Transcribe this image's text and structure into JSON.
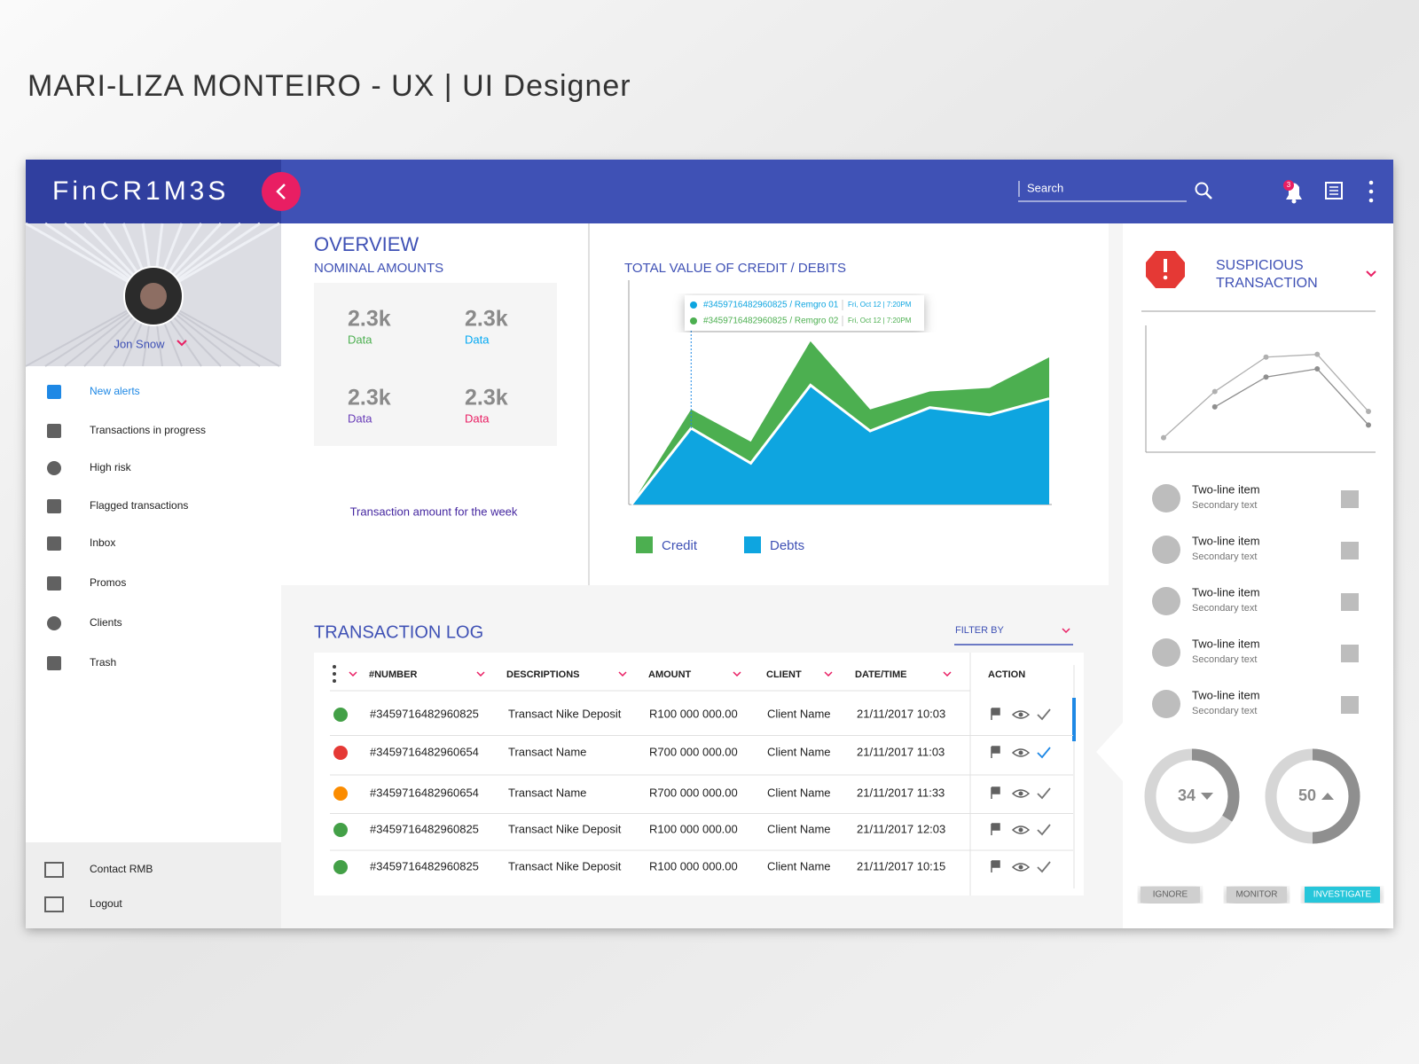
{
  "header": {
    "title": "MARI-LIZA MONTEIRO - UX | UI Designer"
  },
  "app": {
    "brand": "FinCR1M3S",
    "search_placeholder": "Search",
    "notification_count": "3"
  },
  "profile": {
    "name": "Jon Snow"
  },
  "nav": [
    "New alerts",
    "Transactions in progress",
    "High risk",
    "Flagged   transactions",
    "Inbox",
    "Promos",
    "Clients",
    "Trash"
  ],
  "nav_footer": [
    "Contact RMB",
    "Logout"
  ],
  "overview": {
    "title": "OVERVIEW",
    "subtitle": "NOMINAL AMOUNTS",
    "tiles": [
      {
        "value": "2.3k",
        "label": "Data",
        "color": "#4caf50"
      },
      {
        "value": "2.3k",
        "label": "Data",
        "color": "#03a9f4"
      },
      {
        "value": "2.3k",
        "label": "Data",
        "color": "#673ab7"
      },
      {
        "value": "2.3k",
        "label": "Data",
        "color": "#e91e63"
      }
    ],
    "caption": "Transaction amount for the week"
  },
  "chart_data": [
    {
      "type": "area",
      "stacked": true,
      "title": "TOTAL VALUE OF CREDIT / DEBITS",
      "series": [
        {
          "name": "Credit",
          "color": "#4caf50",
          "values": [
            0,
            21,
            24,
            49,
            24,
            18,
            30,
            46
          ]
        },
        {
          "name": "Debts",
          "color": "#0ea5e0",
          "values": [
            0,
            85,
            46,
            133,
            82,
            108,
            100,
            118
          ]
        }
      ],
      "ylim": [
        0,
        250
      ]
    },
    {
      "type": "line",
      "series": [
        {
          "color": "#b0b0b0",
          "values": [
            16,
            67,
            105,
            108,
            45
          ]
        },
        {
          "color": "#8f8f8f",
          "values": [
            null,
            50,
            83,
            92,
            30
          ]
        }
      ],
      "ylim": [
        0,
        140
      ]
    }
  ],
  "tooltip": [
    {
      "text": "#3459716482960825 / Remgro 01",
      "time": "Fri, Oct 12  |  7:20PM"
    },
    {
      "text": "#3459716482960825 / Remgro 02",
      "time": "Fri, Oct 12  |  7:20PM"
    }
  ],
  "transaction_log": {
    "title": "TRANSACTION LOG",
    "filter": "FILTER BY",
    "columns": [
      "#NUMBER",
      "DESCRIPTIONS",
      "AMOUNT",
      "CLIENT",
      "DATE/TIME",
      "ACTION"
    ],
    "rows": [
      {
        "status": "#43a047",
        "check": "#757575",
        "cells": [
          "#3459716482960825",
          "Transact Nike Deposit",
          "R100 000 000.00",
          "Client Name",
          "21/11/2017  10:03"
        ]
      },
      {
        "status": "#e53935",
        "check": "#1e88e5",
        "cells": [
          "#3459716482960654",
          "Transact Name",
          "R700 000 000.00",
          "Client Name",
          "21/11/2017  11:03"
        ]
      },
      {
        "status": "#fb8c00",
        "check": "#757575",
        "cells": [
          "#3459716482960654",
          "Transact Name",
          "R700 000 000.00",
          "Client Name",
          "21/11/2017  11:33"
        ]
      },
      {
        "status": "#43a047",
        "check": "#757575",
        "cells": [
          "#3459716482960825",
          "Transact Nike Deposit",
          "R100 000 000.00",
          "Client Name",
          "21/11/2017  12:03"
        ]
      },
      {
        "status": "#43a047",
        "check": "#757575",
        "cells": [
          "#3459716482960825",
          "Transact Nike Deposit",
          "R100 000 000.00",
          "Client Name",
          "21/11/2017  10:15"
        ]
      }
    ]
  },
  "suspicious": {
    "title": [
      "SUSPICIOUS",
      "TRANSACTION"
    ],
    "items": [
      {
        "primary": "Two-line item",
        "secondary": "Secondary text"
      },
      {
        "primary": "Two-line item",
        "secondary": "Secondary text"
      },
      {
        "primary": "Two-line item",
        "secondary": "Secondary text"
      },
      {
        "primary": "Two-line item",
        "secondary": "Secondary text"
      },
      {
        "primary": "Two-line item",
        "secondary": "Secondary text"
      }
    ],
    "gauges": [
      {
        "value": 34,
        "trend": "down"
      },
      {
        "value": 50,
        "trend": "up"
      }
    ],
    "buttons": [
      "IGNORE",
      "MONITOR",
      "INVESTIGATE"
    ]
  }
}
